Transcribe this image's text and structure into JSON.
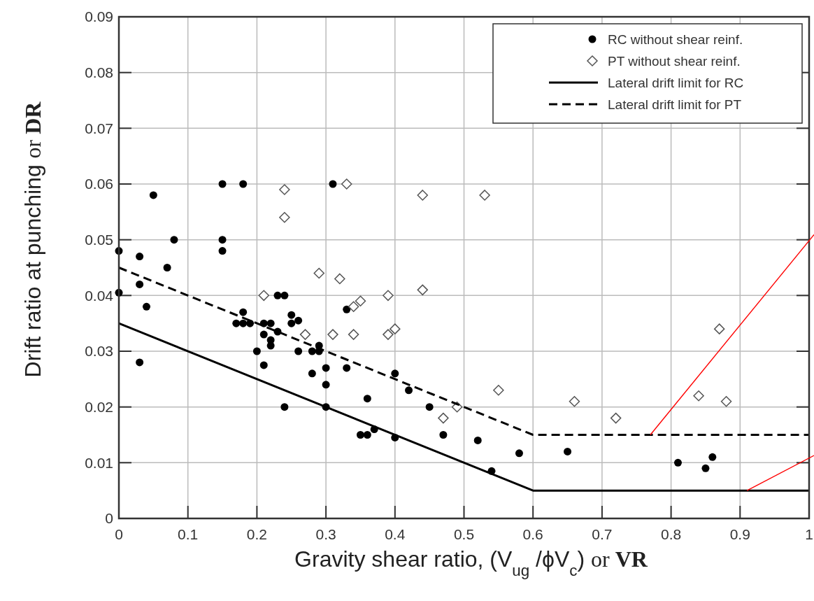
{
  "chart_data": {
    "type": "scatter",
    "xlabel": "Gravity shear ratio, (V$_{ug}$ /ϕV$_{c}$) or VR",
    "ylabel": "Drift ratio at punching or DR",
    "xlim": [
      0,
      1
    ],
    "ylim": [
      0,
      0.09
    ],
    "xticks": [
      0,
      0.1,
      0.2,
      0.3,
      0.4,
      0.5,
      0.6,
      0.7,
      0.8,
      0.9,
      1
    ],
    "yticks": [
      0,
      0.01,
      0.02,
      0.03,
      0.04,
      0.05,
      0.06,
      0.07,
      0.08,
      0.09
    ],
    "grid": true,
    "legend": "top right",
    "series": [
      {
        "name": "RC without shear reinf.",
        "marker": "circle",
        "color": "#000000",
        "x": [
          0,
          0,
          0.03,
          0.03,
          0.03,
          0.04,
          0.05,
          0.07,
          0.08,
          0.15,
          0.15,
          0.15,
          0.18,
          0.17,
          0.18,
          0.18,
          0.19,
          0.2,
          0.21,
          0.21,
          0.21,
          0.22,
          0.22,
          0.22,
          0.23,
          0.23,
          0.24,
          0.24,
          0.25,
          0.25,
          0.26,
          0.26,
          0.28,
          0.28,
          0.29,
          0.29,
          0.3,
          0.3,
          0.3,
          0.31,
          0.33,
          0.33,
          0.35,
          0.36,
          0.36,
          0.37,
          0.4,
          0.4,
          0.42,
          0.45,
          0.47,
          0.52,
          0.54,
          0.58,
          0.65,
          0.81,
          0.85,
          0.86
        ],
        "values": [
          0.048,
          0.0405,
          0.047,
          0.042,
          0.028,
          0.038,
          0.058,
          0.045,
          0.05,
          0.06,
          0.05,
          0.048,
          0.06,
          0.035,
          0.035,
          0.037,
          0.035,
          0.03,
          0.035,
          0.033,
          0.0275,
          0.035,
          0.032,
          0.031,
          0.04,
          0.0335,
          0.04,
          0.02,
          0.0365,
          0.035,
          0.0355,
          0.03,
          0.026,
          0.03,
          0.031,
          0.03,
          0.027,
          0.024,
          0.02,
          0.06,
          0.0375,
          0.027,
          0.015,
          0.015,
          0.0215,
          0.016,
          0.0145,
          0.026,
          0.023,
          0.02,
          0.015,
          0.014,
          0.0085,
          0.0117,
          0.012,
          0.01,
          0.009,
          0.011
        ]
      },
      {
        "name": "PT without shear reinf.",
        "marker": "diamond",
        "color": "#555555",
        "x": [
          0.21,
          0.24,
          0.24,
          0.27,
          0.29,
          0.31,
          0.32,
          0.33,
          0.34,
          0.34,
          0.35,
          0.39,
          0.39,
          0.4,
          0.44,
          0.44,
          0.47,
          0.49,
          0.53,
          0.55,
          0.66,
          0.72,
          0.84,
          0.87,
          0.88
        ],
        "values": [
          0.04,
          0.059,
          0.054,
          0.033,
          0.044,
          0.033,
          0.043,
          0.06,
          0.038,
          0.033,
          0.039,
          0.04,
          0.033,
          0.034,
          0.058,
          0.041,
          0.018,
          0.02,
          0.058,
          0.023,
          0.021,
          0.018,
          0.022,
          0.034,
          0.021
        ]
      },
      {
        "name": "Lateral drift limit for RC",
        "type": "line",
        "marker": "none",
        "line_style": "solid",
        "color": "#000000",
        "x": [
          0,
          0.6,
          1
        ],
        "values": [
          0.035,
          0.005,
          0.005
        ]
      },
      {
        "name": "Lateral drift limit for PT",
        "type": "line",
        "marker": "none",
        "line_style": "dashed",
        "color": "#000000",
        "x": [
          0,
          0.6,
          1
        ],
        "values": [
          0.045,
          0.015,
          0.015
        ]
      }
    ]
  }
}
